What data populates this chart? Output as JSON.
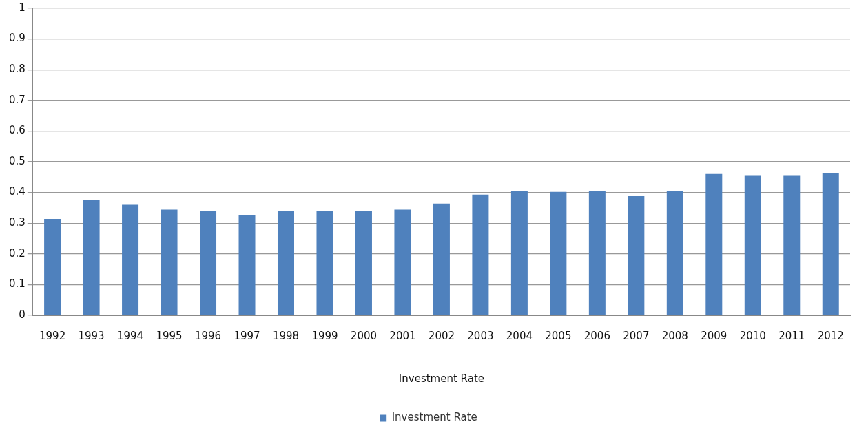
{
  "chart_data": {
    "type": "bar",
    "xlabel": "Investment Rate",
    "categories": [
      "1992",
      "1993",
      "1994",
      "1995",
      "1996",
      "1997",
      "1998",
      "1999",
      "2000",
      "2001",
      "2002",
      "2003",
      "2004",
      "2005",
      "2006",
      "2007",
      "2008",
      "2009",
      "2010",
      "2011",
      "2012"
    ],
    "series": [
      {
        "name": "Investment Rate",
        "color": "#4f81bd",
        "values": [
          0.314,
          0.376,
          0.36,
          0.344,
          0.339,
          0.327,
          0.339,
          0.339,
          0.339,
          0.344,
          0.364,
          0.393,
          0.406,
          0.402,
          0.406,
          0.389,
          0.406,
          0.46,
          0.456,
          0.456,
          0.464
        ]
      }
    ],
    "ylim": [
      0,
      1
    ],
    "yticks": [
      0,
      0.1,
      0.2,
      0.3,
      0.4,
      0.5,
      0.6,
      0.7,
      0.8,
      0.9,
      1
    ],
    "grid": "y",
    "legend": "bottom"
  }
}
